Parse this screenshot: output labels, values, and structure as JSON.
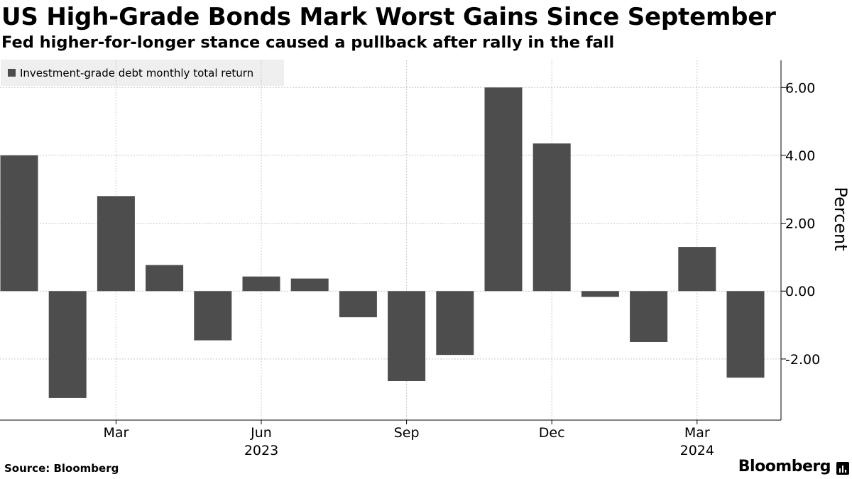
{
  "title": "US High-Grade Bonds Mark Worst Gains Since September",
  "subtitle": "Fed higher-for-longer stance caused a pullback after rally in the fall",
  "source": "Source: Bloomberg",
  "brand": "Bloomberg",
  "colors": {
    "bar": "#4d4d4d",
    "legend_bg": "#efefef",
    "grid": "#c8c8c8",
    "axis": "#000000"
  },
  "chart_data": {
    "type": "bar",
    "title": "US High-Grade Bonds Mark Worst Gains Since September",
    "legend": "Investment-grade debt monthly total return",
    "ylabel": "Percent",
    "ylim": [
      -3.8,
      6.8
    ],
    "yticks": [
      6,
      4,
      2,
      0,
      -2
    ],
    "ytick_labels": [
      "6.00",
      "4.00",
      "2.00",
      "0.00",
      "-2.00"
    ],
    "categories": [
      "Jan 2023",
      "Feb 2023",
      "Mar 2023",
      "Apr 2023",
      "May 2023",
      "Jun 2023",
      "Jul 2023",
      "Aug 2023",
      "Sep 2023",
      "Oct 2023",
      "Nov 2023",
      "Dec 2023",
      "Jan 2024",
      "Feb 2024",
      "Mar 2024",
      "Apr 2024"
    ],
    "values": [
      4.0,
      -3.15,
      2.8,
      0.77,
      -1.45,
      0.43,
      0.37,
      -0.77,
      -2.65,
      -1.88,
      6.0,
      4.35,
      -0.17,
      -1.5,
      1.3,
      -2.55
    ],
    "x_ticks": [
      {
        "label": "Mar",
        "month_index": 2
      },
      {
        "label": "Jun",
        "month_index": 5
      },
      {
        "label": "Sep",
        "month_index": 8
      },
      {
        "label": "Dec",
        "month_index": 11
      },
      {
        "label": "Mar",
        "month_index": 14
      }
    ],
    "year_labels": [
      {
        "label": "2023",
        "month_index": 5
      },
      {
        "label": "2024",
        "month_index": 14
      }
    ],
    "grid": true
  }
}
